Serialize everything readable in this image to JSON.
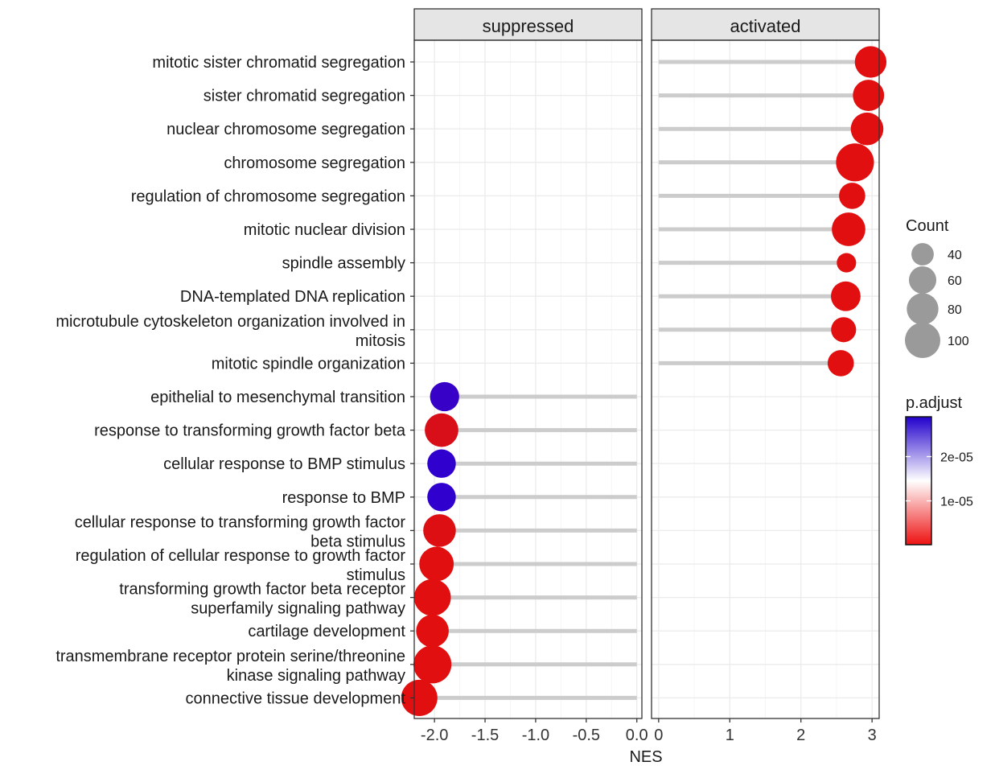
{
  "chart_data": {
    "type": "scatter",
    "xlabel": "NES",
    "panels": [
      {
        "name": "suppressed",
        "xlim": [
          -2.2,
          0.05
        ],
        "ticks": [
          -2.0,
          -1.5,
          -1.0,
          -0.5,
          0.0
        ],
        "tick_labels": [
          "-2.0",
          "-1.5",
          "-1.0",
          "-0.5",
          "0.0"
        ]
      },
      {
        "name": "activated",
        "xlim": [
          -0.1,
          3.1
        ],
        "ticks": [
          0,
          1,
          2,
          3
        ],
        "tick_labels": [
          "0",
          "1",
          "2",
          "3"
        ]
      }
    ],
    "categories": [
      "mitotic sister chromatid segregation",
      "sister chromatid segregation",
      "nuclear chromosome segregation",
      "chromosome segregation",
      "regulation of chromosome segregation",
      "mitotic nuclear division",
      "spindle assembly",
      "DNA-templated DNA replication",
      "microtubule cytoskeleton organization involved in\nmitosis",
      "mitotic spindle organization",
      "epithelial to mesenchymal transition",
      "response to transforming growth factor beta",
      "cellular response to BMP stimulus",
      "response to BMP",
      "cellular response to transforming growth factor\nbeta stimulus",
      "regulation of cellular response to growth factor\nstimulus",
      "transforming growth factor beta receptor\nsuperfamily signaling pathway",
      "cartilage development",
      "transmembrane receptor protein serine/threonine\nkinase signaling pathway",
      "connective tissue development"
    ],
    "points": [
      {
        "category": "mitotic sister chromatid segregation",
        "panel": "activated",
        "nes": 2.98,
        "count": 80,
        "p_adjust": 1e-07
      },
      {
        "category": "sister chromatid segregation",
        "panel": "activated",
        "nes": 2.95,
        "count": 78,
        "p_adjust": 1e-07
      },
      {
        "category": "nuclear chromosome segregation",
        "panel": "activated",
        "nes": 2.93,
        "count": 85,
        "p_adjust": 1e-07
      },
      {
        "category": "chromosome segregation",
        "panel": "activated",
        "nes": 2.76,
        "count": 115,
        "p_adjust": 1e-07
      },
      {
        "category": "regulation of chromosome segregation",
        "panel": "activated",
        "nes": 2.72,
        "count": 55,
        "p_adjust": 1e-07
      },
      {
        "category": "mitotic nuclear division",
        "panel": "activated",
        "nes": 2.67,
        "count": 90,
        "p_adjust": 1e-07
      },
      {
        "category": "spindle assembly",
        "panel": "activated",
        "nes": 2.64,
        "count": 30,
        "p_adjust": 1e-07
      },
      {
        "category": "DNA-templated DNA replication",
        "panel": "activated",
        "nes": 2.63,
        "count": 70,
        "p_adjust": 1e-07
      },
      {
        "category": "microtubule cytoskeleton organization involved in\nmitosis",
        "panel": "activated",
        "nes": 2.6,
        "count": 50,
        "p_adjust": 1e-07
      },
      {
        "category": "mitotic spindle organization",
        "panel": "activated",
        "nes": 2.56,
        "count": 55,
        "p_adjust": 1e-07
      },
      {
        "category": "epithelial to mesenchymal transition",
        "panel": "suppressed",
        "nes": -1.9,
        "count": 68,
        "p_adjust": 2.7e-05
      },
      {
        "category": "response to transforming growth factor beta",
        "panel": "suppressed",
        "nes": -1.93,
        "count": 90,
        "p_adjust": 1.5e-06
      },
      {
        "category": "cellular response to BMP stimulus",
        "panel": "suppressed",
        "nes": -1.93,
        "count": 65,
        "p_adjust": 2.8e-05
      },
      {
        "category": "response to BMP",
        "panel": "suppressed",
        "nes": -1.93,
        "count": 65,
        "p_adjust": 2.8e-05
      },
      {
        "category": "cellular response to transforming growth factor\nbeta stimulus",
        "panel": "suppressed",
        "nes": -1.95,
        "count": 85,
        "p_adjust": 5e-07
      },
      {
        "category": "regulation of cellular response to growth factor\nstimulus",
        "panel": "suppressed",
        "nes": -1.98,
        "count": 95,
        "p_adjust": 1e-07
      },
      {
        "category": "transforming growth factor beta receptor\nsuperfamily signaling pathway",
        "panel": "suppressed",
        "nes": -2.02,
        "count": 108,
        "p_adjust": 1e-07
      },
      {
        "category": "cartilage development",
        "panel": "suppressed",
        "nes": -2.02,
        "count": 85,
        "p_adjust": 1e-07
      },
      {
        "category": "transmembrane receptor protein serine/threonine\nkinase signaling pathway",
        "panel": "suppressed",
        "nes": -2.02,
        "count": 115,
        "p_adjust": 1e-07
      },
      {
        "category": "connective tissue development",
        "panel": "suppressed",
        "nes": -2.15,
        "count": 105,
        "p_adjust": 1e-07
      }
    ],
    "legend_size": {
      "title": "Count",
      "values": [
        40,
        60,
        80,
        100
      ],
      "labels": [
        "40",
        "60",
        "80",
        "100"
      ]
    },
    "legend_color": {
      "title": "p.adjust",
      "tick_values": [
        2e-05,
        1e-05
      ],
      "tick_labels": [
        "2e-05",
        "1e-05"
      ],
      "range": [
        1e-07,
        2.9e-05
      ],
      "low_color": "#ee1111",
      "mid_color": "#ffffff",
      "high_color": "#2200cc"
    },
    "colors": {
      "segment": "#cccccc",
      "strip_bg": "#e5e5e5",
      "panel_border": "#333333",
      "grid_major": "#ebebeb",
      "grid_minor": "#f5f5f5",
      "size_legend_dot": "#9a9a9a",
      "point_red": "#e10f0f",
      "point_blue": "#2a00d5"
    },
    "grid": true,
    "legend_position": "right"
  }
}
